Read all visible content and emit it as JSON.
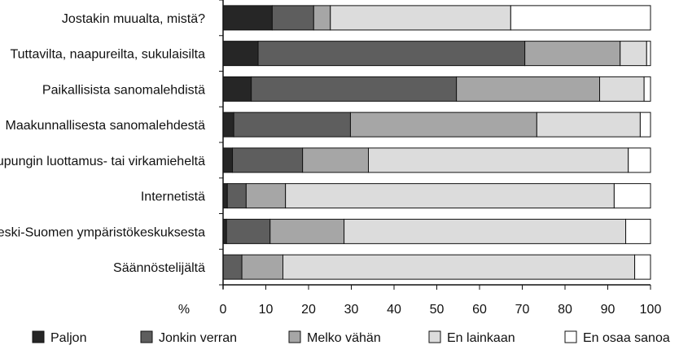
{
  "chart_data": {
    "type": "bar",
    "orientation": "horizontal",
    "stacked": true,
    "categories": [
      "Jostakin muualta, mistä?",
      "Tuttavilta, naapureilta, sukulaisilta",
      "Paikallisista sanomalehdistä",
      "Maakunnallisesta sanomalehdestä",
      "Kaupungin luottamus- tai virkamieheltä",
      "Internetistä",
      "Keski-Suomen ympäristökeskuksesta",
      "Säännöstelijältä"
    ],
    "series": [
      {
        "name": "Paljon",
        "color": "#262626",
        "values": [
          11.5,
          8.2,
          6.6,
          2.5,
          2.2,
          1.0,
          0.8,
          0.0
        ]
      },
      {
        "name": "Jonkin verran",
        "color": "#5e5e5e",
        "values": [
          9.7,
          62.4,
          48.0,
          27.3,
          16.4,
          4.4,
          10.2,
          4.4
        ]
      },
      {
        "name": "Melko vähän",
        "color": "#a6a6a6",
        "values": [
          3.9,
          22.3,
          33.5,
          43.6,
          15.4,
          9.2,
          17.3,
          9.6
        ]
      },
      {
        "name": "En lainkaan",
        "color": "#dcdcdc",
        "values": [
          42.2,
          6.2,
          10.4,
          24.2,
          60.8,
          76.9,
          65.9,
          82.3
        ]
      },
      {
        "name": "En osaa sanoa",
        "color": "#ffffff",
        "values": [
          32.7,
          0.9,
          1.5,
          2.4,
          5.2,
          8.5,
          5.8,
          3.7
        ]
      }
    ],
    "xlim": [
      0,
      100
    ],
    "xticks": [
      0,
      10,
      20,
      30,
      40,
      50,
      60,
      70,
      80,
      90,
      100
    ],
    "xlabel": "%",
    "legend_position": "bottom",
    "grid": false
  }
}
